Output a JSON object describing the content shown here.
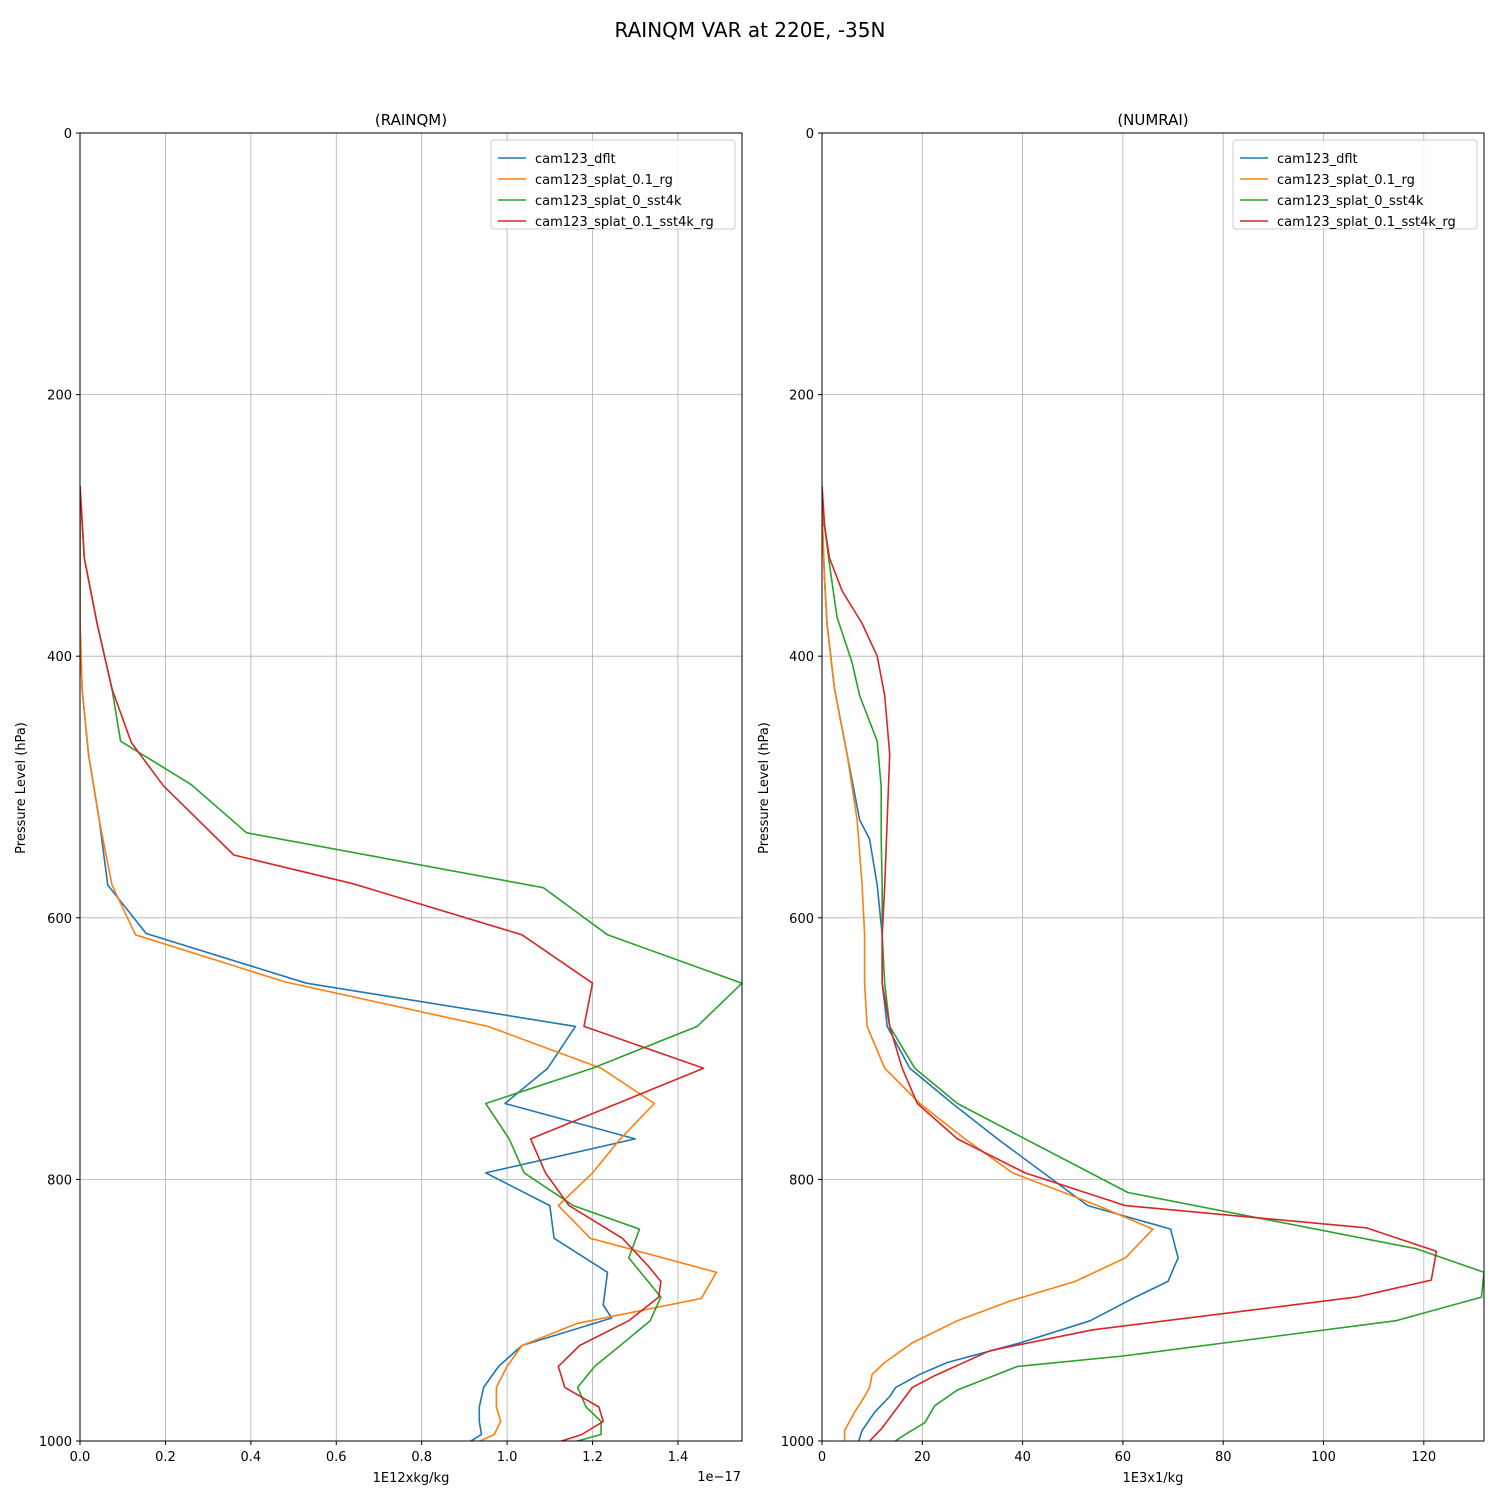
{
  "figure": {
    "title": "RAINQM VAR at 220E, -35N",
    "colors": [
      "#1f77b4",
      "#ff7f0e",
      "#2ca02c",
      "#d62728"
    ]
  },
  "chart_data": [
    {
      "type": "line",
      "title": "(RAINQM)",
      "xlabel": "1E12xkg/kg",
      "ylabel": "Pressure Level (hPa)",
      "x_offset_text": "1e−17",
      "xlim": [
        0,
        1.55
      ],
      "ylim": [
        1000,
        0
      ],
      "y_inverted": true,
      "grid": true,
      "legend_position": "top-right",
      "x_ticks": [
        0.0,
        0.2,
        0.4,
        0.6,
        0.8,
        1.0,
        1.2,
        1.4
      ],
      "x_tick_labels": [
        "0.0",
        "0.2",
        "0.4",
        "0.6",
        "0.8",
        "1.0",
        "1.2",
        "1.4"
      ],
      "y_ticks": [
        0,
        200,
        400,
        600,
        800,
        1000
      ],
      "y_tick_labels": [
        "0",
        "200",
        "400",
        "600",
        "800",
        "1000"
      ],
      "series": [
        {
          "name": "cam123_dflt",
          "x": [
            0.0,
            0.0,
            0.0,
            0.005,
            0.02,
            0.045,
            0.065,
            0.155,
            0.53,
            1.16,
            1.095,
            0.995,
            1.3,
            0.95,
            1.1,
            1.11,
            1.235,
            1.225,
            1.245,
            1.035,
            0.98,
            0.945,
            0.935,
            0.935,
            0.94,
            0.895,
            0.84,
            0.805,
            0.805
          ],
          "y": [
            270,
            325,
            375,
            425,
            475,
            525,
            575,
            612,
            650,
            683,
            715,
            742,
            769,
            795,
            820,
            845,
            871,
            896,
            906,
            927,
            943,
            959,
            974,
            985,
            995,
            1004,
            1012,
            1019,
            1025
          ]
        },
        {
          "name": "cam123_splat_0.1_rg",
          "x": [
            0.0,
            0.0,
            0.0,
            0.005,
            0.02,
            0.045,
            0.075,
            0.13,
            0.48,
            0.955,
            1.22,
            1.345,
            1.265,
            1.2,
            1.12,
            1.195,
            1.49,
            1.455,
            1.165,
            1.035,
            1.0,
            0.975,
            0.975,
            0.985,
            0.97,
            0.91,
            0.845,
            0.825,
            0.825
          ],
          "y": [
            270,
            325,
            375,
            425,
            475,
            525,
            575,
            613,
            649,
            683,
            715,
            742,
            769,
            795,
            820,
            845,
            871,
            891,
            910,
            927,
            943,
            959,
            974,
            985,
            995,
            1004,
            1012,
            1019,
            1025
          ]
        },
        {
          "name": "cam123_splat_0_sst4k",
          "x": [
            0.0,
            0.01,
            0.04,
            0.075,
            0.095,
            0.26,
            0.39,
            1.085,
            1.235,
            1.55,
            1.445,
            1.2,
            0.95,
            1.005,
            1.04,
            1.155,
            1.31,
            1.285,
            1.36,
            1.335,
            1.265,
            1.205,
            1.165,
            1.185,
            1.22,
            1.22,
            1.12,
            1.08,
            1.065
          ],
          "y": [
            270,
            325,
            375,
            425,
            465,
            498,
            535,
            577,
            613,
            650,
            683,
            715,
            742,
            769,
            795,
            820,
            838,
            860,
            890,
            908,
            927,
            943,
            959,
            974,
            985,
            995,
            1004,
            1012,
            1019
          ]
        },
        {
          "name": "cam123_splat_0.1_sst4k_rg",
          "x": [
            0.0,
            0.01,
            0.04,
            0.075,
            0.12,
            0.195,
            0.36,
            0.64,
            1.035,
            1.2,
            1.18,
            1.46,
            1.055,
            1.09,
            1.145,
            1.27,
            1.33,
            1.36,
            1.355,
            1.285,
            1.17,
            1.12,
            1.135,
            1.215,
            1.225,
            1.175,
            1.09,
            1.035,
            1.005
          ],
          "y": [
            270,
            325,
            375,
            425,
            466,
            499,
            552,
            574,
            613,
            650,
            683,
            715,
            769,
            795,
            820,
            845,
            866,
            878,
            890,
            908,
            927,
            943,
            959,
            974,
            985,
            995,
            1004,
            1012,
            1019
          ]
        }
      ]
    },
    {
      "type": "line",
      "title": "(NUMRAI)",
      "xlabel": "1E3x1/kg",
      "ylabel": "Pressure Level (hPa)",
      "xlim": [
        0,
        132
      ],
      "ylim": [
        1000,
        0
      ],
      "y_inverted": true,
      "grid": true,
      "legend_position": "top-right",
      "x_ticks": [
        0,
        20,
        40,
        60,
        80,
        100,
        120
      ],
      "x_tick_labels": [
        "0",
        "20",
        "40",
        "60",
        "80",
        "100",
        "120"
      ],
      "y_ticks": [
        0,
        200,
        400,
        600,
        800,
        1000
      ],
      "y_tick_labels": [
        "0",
        "200",
        "400",
        "600",
        "800",
        "1000"
      ],
      "series": [
        {
          "name": "cam123_dflt",
          "x": [
            0.0,
            0.1,
            0.5,
            1.0,
            2.5,
            5.0,
            7.5,
            9.5,
            11.0,
            12.0,
            12.0,
            13.0,
            17.5,
            26.0,
            35.0,
            53.0,
            69.5,
            71.0,
            69.0,
            62.5,
            53.5,
            39.5,
            25.0,
            19.5,
            14.7,
            13.5,
            10.5,
            8.0,
            7.0
          ],
          "y": [
            270,
            300,
            340,
            375,
            425,
            475,
            525,
            540,
            575,
            613,
            650,
            683,
            715,
            742,
            769,
            820,
            838,
            860,
            878,
            890,
            908,
            925,
            940,
            949,
            959,
            966,
            978,
            992,
            1004
          ]
        },
        {
          "name": "cam123_splat_0.1_rg",
          "x": [
            0.0,
            0.1,
            0.5,
            1.0,
            2.5,
            5.0,
            7.0,
            8.0,
            8.5,
            8.5,
            9.0,
            12.5,
            19.5,
            28.5,
            38.0,
            55.0,
            66.0,
            60.5,
            50.5,
            37.5,
            27.0,
            18.0,
            12.5,
            10.0,
            9.5,
            8.5,
            6.5,
            4.5,
            4.5
          ],
          "y": [
            270,
            300,
            340,
            375,
            425,
            475,
            525,
            575,
            613,
            650,
            683,
            715,
            742,
            769,
            795,
            820,
            838,
            860,
            878,
            893,
            908,
            925,
            940,
            949,
            959,
            966,
            978,
            992,
            1004
          ]
        },
        {
          "name": "cam123_splat_0_sst4k",
          "x": [
            0.0,
            0.5,
            1.5,
            3.0,
            6.0,
            7.5,
            11.0,
            11.8,
            11.8,
            12.0,
            12.0,
            12.5,
            13.5,
            18.5,
            27.0,
            40.5,
            61.0,
            118.5,
            132.0,
            131.5,
            114.5,
            60.0,
            39.0,
            27.0,
            22.5,
            20.5,
            17.0,
            13.0,
            11.5
          ],
          "y": [
            270,
            300,
            330,
            370,
            405,
            430,
            465,
            500,
            540,
            576,
            613,
            650,
            683,
            715,
            742,
            769,
            810,
            853,
            871,
            890,
            908,
            935,
            943,
            961,
            973,
            986,
            994,
            1004,
            1008
          ]
        },
        {
          "name": "cam123_splat_0.1_sst4k_rg",
          "x": [
            0.0,
            0.5,
            1.5,
            4.0,
            8.0,
            11.0,
            12.5,
            13.5,
            13.0,
            12.5,
            12.0,
            12.0,
            13.5,
            16.0,
            19.0,
            27.0,
            40.5,
            60.5,
            108.5,
            122.5,
            121.5,
            106.5,
            54.0,
            33.5,
            22.5,
            18.0,
            15.5,
            12.0,
            8.5
          ],
          "y": [
            270,
            300,
            325,
            350,
            375,
            400,
            430,
            475,
            525,
            576,
            613,
            650,
            683,
            715,
            742,
            769,
            795,
            820,
            837,
            855,
            877,
            890,
            915,
            931,
            950,
            959,
            972,
            990,
            1004
          ]
        }
      ]
    }
  ]
}
